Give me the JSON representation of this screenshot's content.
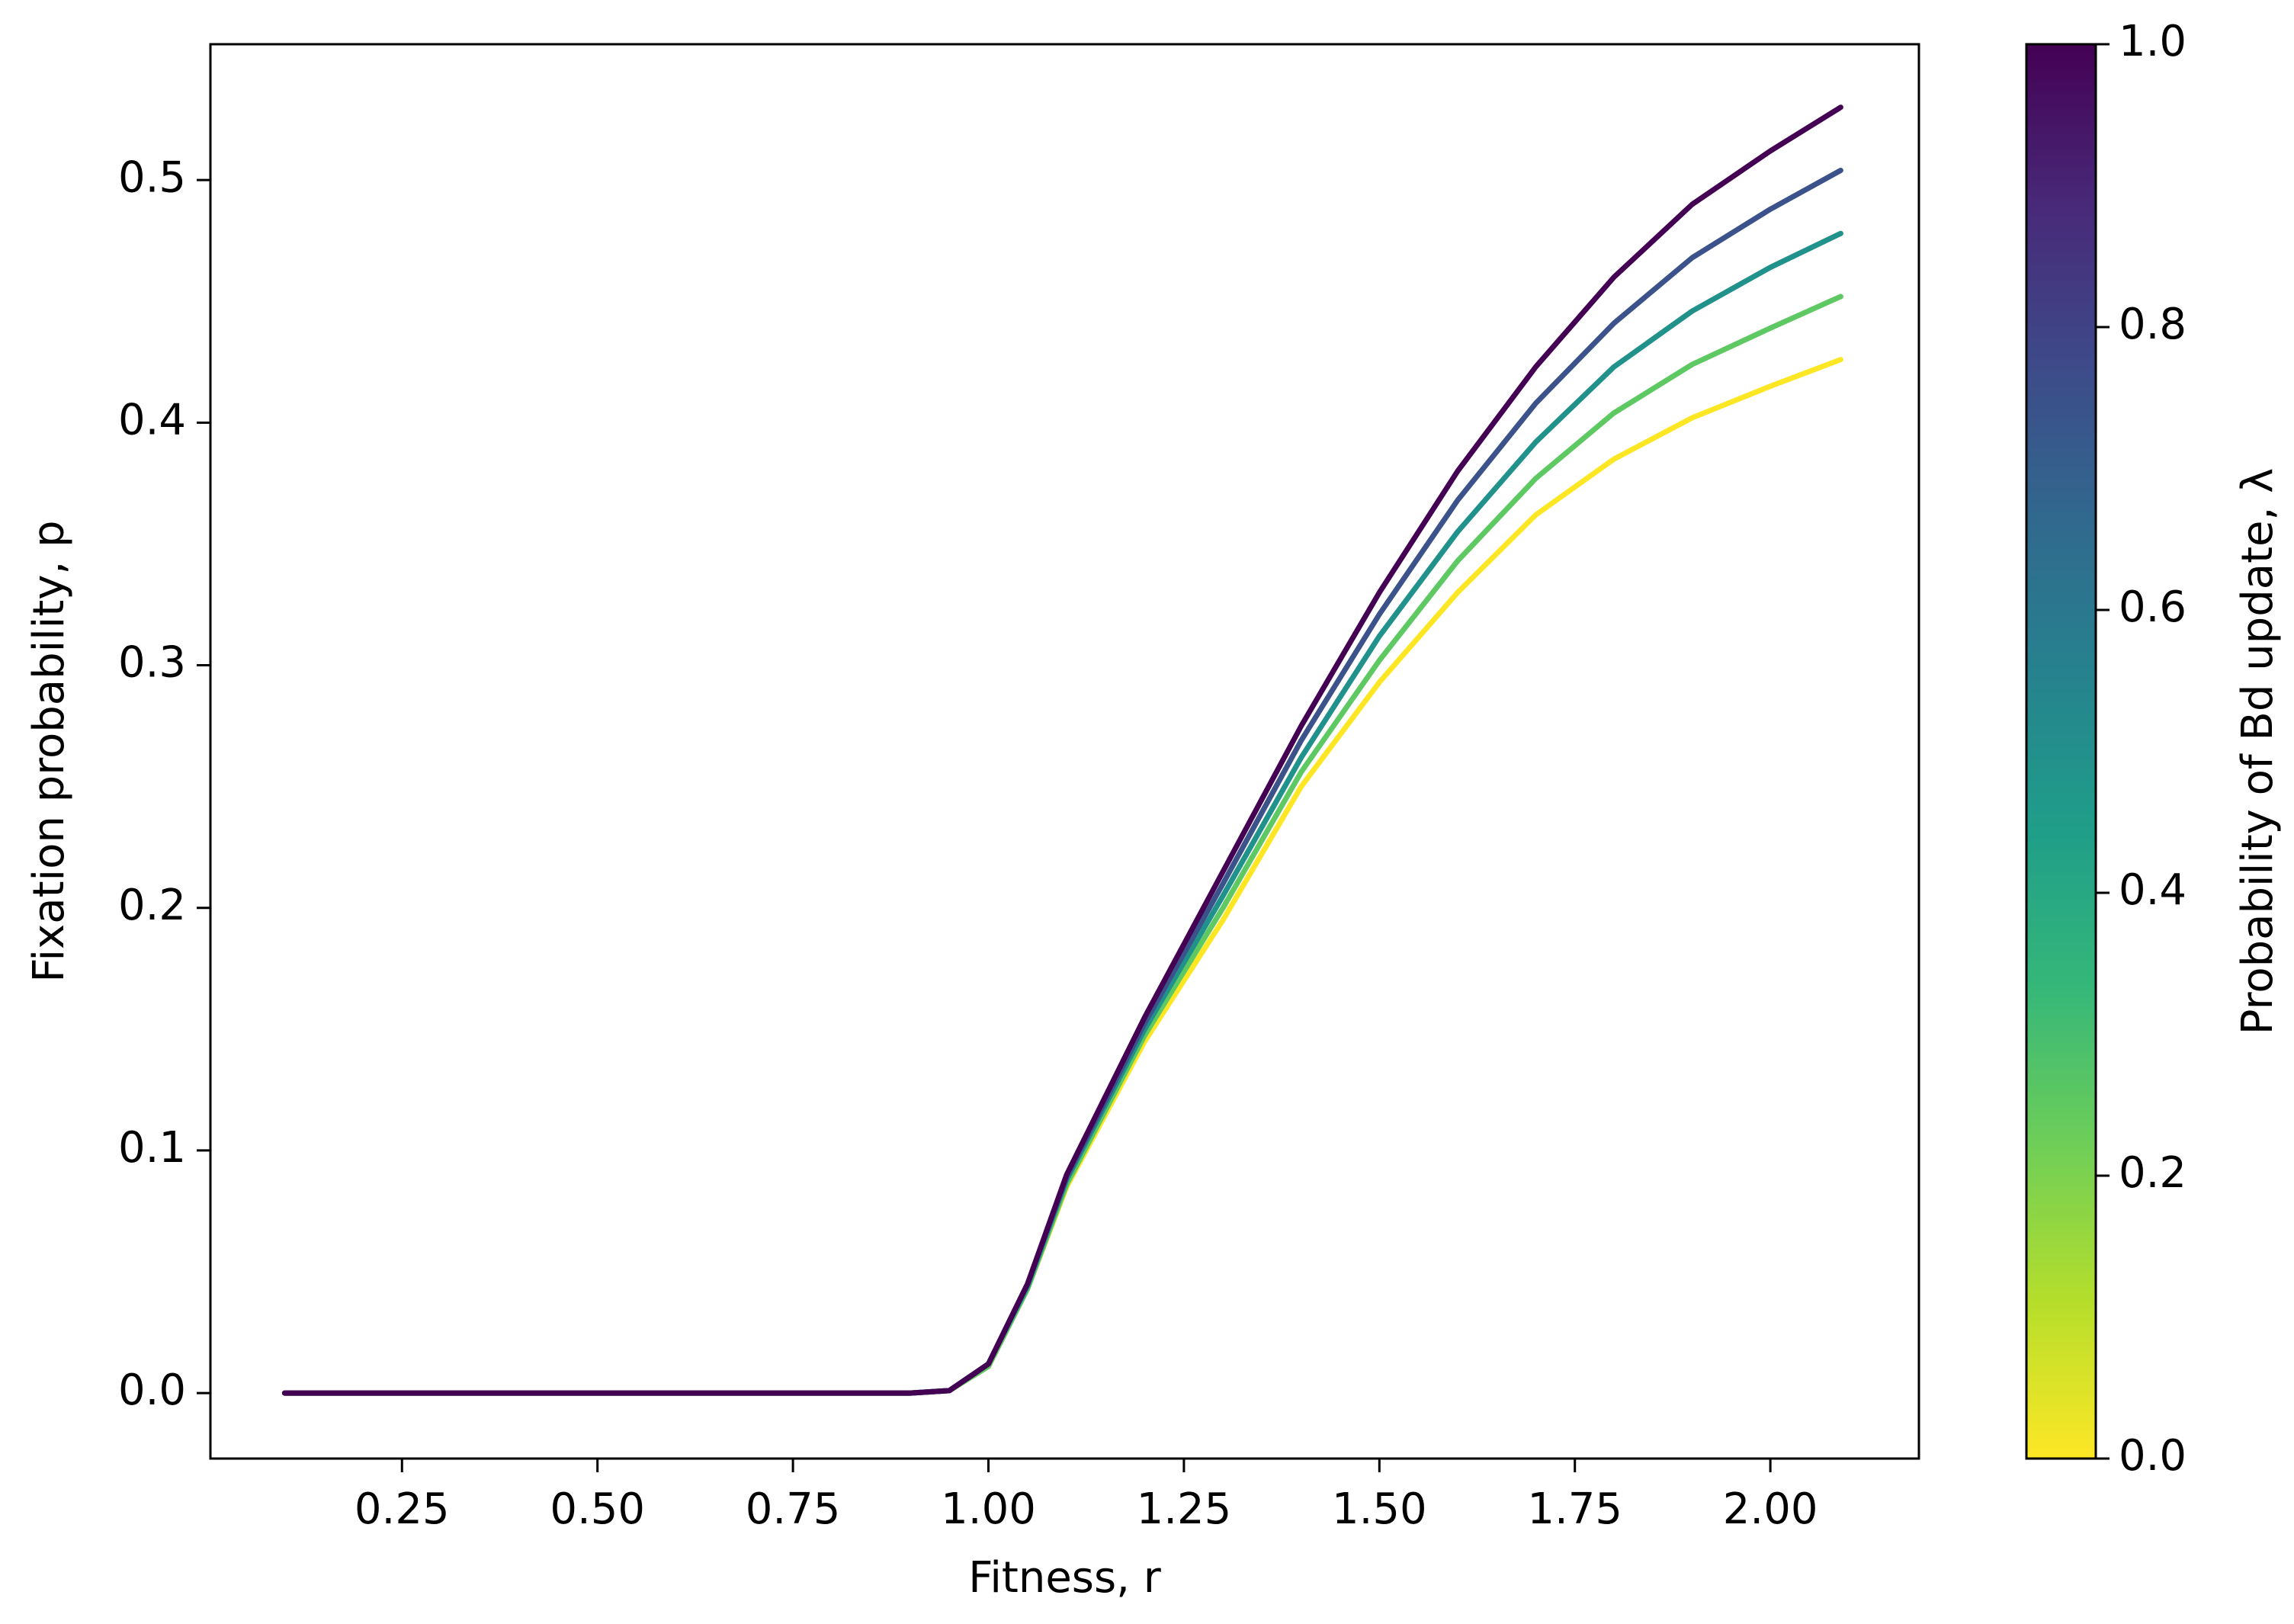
{
  "chart_data": {
    "type": "line",
    "xlabel": "Fitness, r",
    "ylabel": "Fixation probability, p",
    "x": [
      0.1,
      0.25,
      0.5,
      0.75,
      0.9,
      0.95,
      1.0,
      1.05,
      1.1,
      1.2,
      1.3,
      1.4,
      1.5,
      1.6,
      1.7,
      1.8,
      1.9,
      2.0,
      2.09
    ],
    "series": [
      {
        "color": "#fde725",
        "values": [
          0,
          0,
          0,
          0,
          0,
          0.001,
          0.011,
          0.043,
          0.085,
          0.145,
          0.195,
          0.25,
          0.293,
          0.33,
          0.362,
          0.385,
          0.402,
          0.415,
          0.426
        ]
      },
      {
        "color": "#5ec962",
        "values": [
          0,
          0,
          0,
          0,
          0,
          0.001,
          0.011,
          0.043,
          0.086,
          0.1475,
          0.2,
          0.256,
          0.302,
          0.343,
          0.377,
          0.404,
          0.424,
          0.439,
          0.452
        ]
      },
      {
        "color": "#21918c",
        "values": [
          0,
          0,
          0,
          0,
          0,
          0.001,
          0.012,
          0.044,
          0.088,
          0.15,
          0.205,
          0.262,
          0.312,
          0.355,
          0.392,
          0.423,
          0.446,
          0.464,
          0.478
        ]
      },
      {
        "color": "#3b528b",
        "values": [
          0,
          0,
          0,
          0,
          0,
          0.001,
          0.012,
          0.045,
          0.089,
          0.1525,
          0.21,
          0.269,
          0.321,
          0.368,
          0.408,
          0.441,
          0.468,
          0.488,
          0.504
        ]
      },
      {
        "color": "#440154",
        "values": [
          0,
          0,
          0,
          0,
          0,
          0.001,
          0.012,
          0.045,
          0.09,
          0.155,
          0.215,
          0.275,
          0.33,
          0.38,
          0.423,
          0.46,
          0.49,
          0.512,
          0.53
        ]
      }
    ],
    "xlim": [
      0.005,
      2.19
    ],
    "ylim": [
      -0.027,
      0.556
    ],
    "xticks": [
      0.25,
      {
        "value": 0.5,
        "label": "0.50"
      },
      0.75,
      {
        "value": 1,
        "label": "1.00"
      },
      1.25,
      {
        "value": 1.5,
        "label": "1.50"
      },
      1.75,
      {
        "value": 2,
        "label": "2.00"
      }
    ],
    "yticks": [
      {
        "value": 0,
        "label": "0.0"
      },
      0.1,
      0.2,
      0.3,
      0.4,
      0.5
    ],
    "colorbar": {
      "label": "Probability of Bd update, λ",
      "lim": [
        0,
        1
      ],
      "ticks": [
        {
          "value": 0,
          "label": "0.0"
        },
        0.2,
        0.4,
        0.6,
        0.8,
        {
          "value": 1,
          "label": "1.0"
        }
      ],
      "colors": [
        "#fde725",
        "#b5de2b",
        "#6ece58",
        "#35b779",
        "#1f9e89",
        "#26828e",
        "#31688e",
        "#3e4989",
        "#482878",
        "#440154"
      ]
    }
  }
}
